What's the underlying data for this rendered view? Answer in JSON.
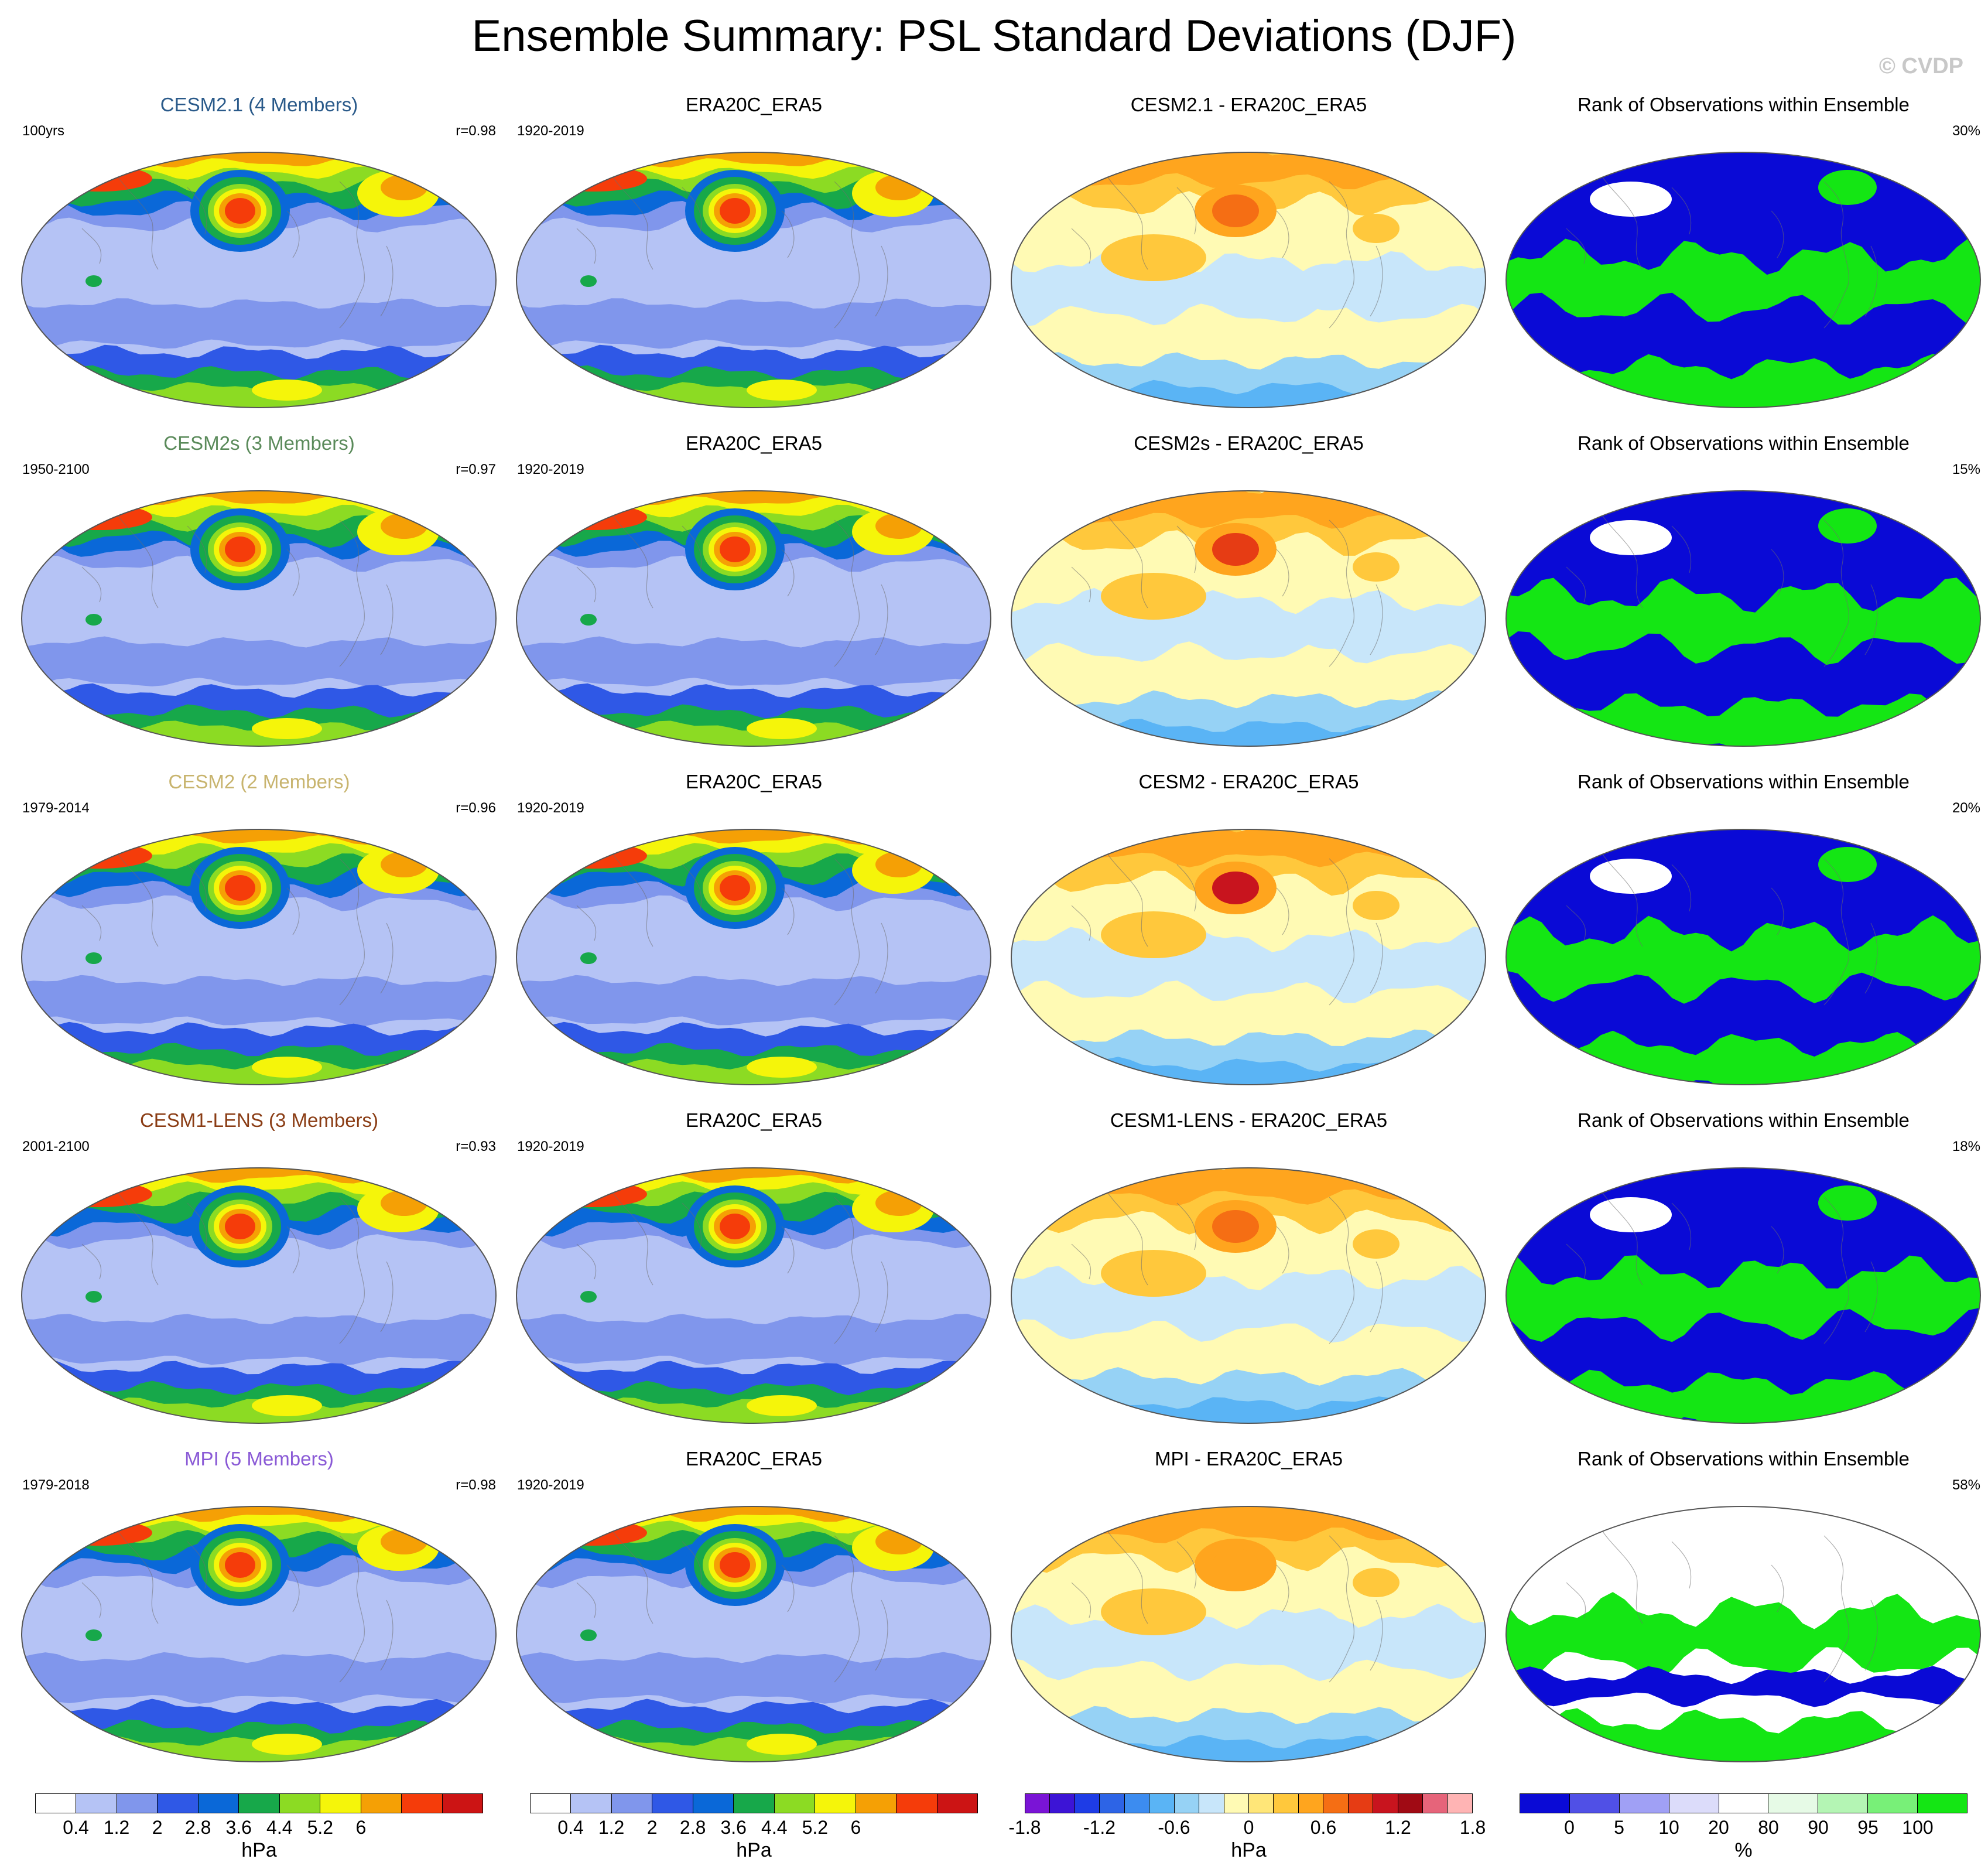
{
  "header": {
    "title": "Ensemble Summary: PSL Standard Deviations (DJF)",
    "credit": "© CVDP"
  },
  "colors": {
    "std_scale": [
      "#ffffff",
      "#b5c3f5",
      "#8096ec",
      "#2f58e6",
      "#0a68d8",
      "#17a84a",
      "#8cdb23",
      "#f5f50a",
      "#f5a005",
      "#f53c0a",
      "#cc1414"
    ],
    "diff_scale": [
      "#7a14d6",
      "#3c14d6",
      "#1e3ce6",
      "#2d64e6",
      "#3c8cf0",
      "#5ab4f5",
      "#96d2f5",
      "#c8e6fa",
      "#fffab4",
      "#ffe678",
      "#ffc83c",
      "#ffa51e",
      "#f56e14",
      "#e63c14",
      "#c8141e",
      "#a00a14",
      "#e6647a",
      "#ffb4b4"
    ],
    "rank_scale": [
      "#0a0ad6",
      "#5050e6",
      "#a0a0f5",
      "#dcdcfa",
      "#ffffff",
      "#e6fae6",
      "#b4f5b4",
      "#78f078",
      "#14e614"
    ],
    "title_cesm21": "#2a5a8a",
    "title_cesm2s": "#5a8a5a",
    "title_cesm2": "#c8b46e",
    "title_cesm1": "#8a3c14",
    "title_mpi": "#8a5ad6"
  },
  "rows": [
    {
      "model": {
        "title": "CESM2.1 (4 Members)",
        "period": "100yrs",
        "r": "r=0.98"
      },
      "obs": {
        "title": "ERA20C_ERA5",
        "period": "1920-2019"
      },
      "diff": {
        "title": "CESM2.1 - ERA20C_ERA5"
      },
      "rank": {
        "title": "Rank of Observations within Ensemble",
        "pct": "30%"
      }
    },
    {
      "model": {
        "title": "CESM2s (3 Members)",
        "period": "1950-2100",
        "r": "r=0.97"
      },
      "obs": {
        "title": "ERA20C_ERA5",
        "period": "1920-2019"
      },
      "diff": {
        "title": "CESM2s - ERA20C_ERA5"
      },
      "rank": {
        "title": "Rank of Observations within Ensemble",
        "pct": "15%"
      }
    },
    {
      "model": {
        "title": "CESM2 (2 Members)",
        "period": "1979-2014",
        "r": "r=0.96"
      },
      "obs": {
        "title": "ERA20C_ERA5",
        "period": "1920-2019"
      },
      "diff": {
        "title": "CESM2 - ERA20C_ERA5"
      },
      "rank": {
        "title": "Rank of Observations within Ensemble",
        "pct": "20%"
      }
    },
    {
      "model": {
        "title": "CESM1-LENS (3 Members)",
        "period": "2001-2100",
        "r": "r=0.93"
      },
      "obs": {
        "title": "ERA20C_ERA5",
        "period": "1920-2019"
      },
      "diff": {
        "title": "CESM1-LENS - ERA20C_ERA5"
      },
      "rank": {
        "title": "Rank of Observations within Ensemble",
        "pct": "18%"
      }
    },
    {
      "model": {
        "title": "MPI (5 Members)",
        "period": "1979-2018",
        "r": "r=0.98"
      },
      "obs": {
        "title": "ERA20C_ERA5",
        "period": "1920-2019"
      },
      "diff": {
        "title": "MPI - ERA20C_ERA5"
      },
      "rank": {
        "title": "Rank of Observations within Ensemble",
        "pct": "58%"
      }
    }
  ],
  "colorbars": {
    "std": {
      "ticks": [
        "0.4",
        "1.2",
        "2",
        "2.8",
        "3.6",
        "4.4",
        "5.2",
        "6"
      ],
      "unit": "hPa"
    },
    "diff": {
      "ticks": [
        "-1.8",
        "-1.2",
        "-0.6",
        "0",
        "0.6",
        "1.2",
        "1.8"
      ],
      "unit": "hPa"
    },
    "rank": {
      "ticks": [
        "0",
        "5",
        "10",
        "20",
        "80",
        "90",
        "95",
        "100"
      ],
      "unit": "%"
    }
  },
  "chart_data": {
    "type": "heatmap",
    "title": "Ensemble Summary: PSL Standard Deviations (DJF)",
    "projection": "Robinson (Pacific-centered)",
    "variable": "PSL standard deviation",
    "season": "DJF",
    "panels": [
      {
        "row": 1,
        "column": "model",
        "title": "CESM2.1 (4 Members)",
        "period": "100yrs",
        "pattern_correlation": 0.98
      },
      {
        "row": 1,
        "column": "observations",
        "title": "ERA20C_ERA5",
        "period": "1920-2019"
      },
      {
        "row": 1,
        "column": "difference",
        "title": "CESM2.1 - ERA20C_ERA5"
      },
      {
        "row": 1,
        "column": "rank",
        "title": "Rank of Observations within Ensemble",
        "percent": 30
      },
      {
        "row": 2,
        "column": "model",
        "title": "CESM2s (3 Members)",
        "period": "1950-2100",
        "pattern_correlation": 0.97
      },
      {
        "row": 2,
        "column": "observations",
        "title": "ERA20C_ERA5",
        "period": "1920-2019"
      },
      {
        "row": 2,
        "column": "difference",
        "title": "CESM2s - ERA20C_ERA5"
      },
      {
        "row": 2,
        "column": "rank",
        "title": "Rank of Observations within Ensemble",
        "percent": 15
      },
      {
        "row": 3,
        "column": "model",
        "title": "CESM2 (2 Members)",
        "period": "1979-2014",
        "pattern_correlation": 0.96
      },
      {
        "row": 3,
        "column": "observations",
        "title": "ERA20C_ERA5",
        "period": "1920-2019"
      },
      {
        "row": 3,
        "column": "difference",
        "title": "CESM2 - ERA20C_ERA5"
      },
      {
        "row": 3,
        "column": "rank",
        "title": "Rank of Observations within Ensemble",
        "percent": 20
      },
      {
        "row": 4,
        "column": "model",
        "title": "CESM1-LENS (3 Members)",
        "period": "2001-2100",
        "pattern_correlation": 0.93
      },
      {
        "row": 4,
        "column": "observations",
        "title": "ERA20C_ERA5",
        "period": "1920-2019"
      },
      {
        "row": 4,
        "column": "difference",
        "title": "CESM1-LENS - ERA20C_ERA5"
      },
      {
        "row": 4,
        "column": "rank",
        "title": "Rank of Observations within Ensemble",
        "percent": 18
      },
      {
        "row": 5,
        "column": "model",
        "title": "MPI (5 Members)",
        "period": "1979-2018",
        "pattern_correlation": 0.98
      },
      {
        "row": 5,
        "column": "observations",
        "title": "ERA20C_ERA5",
        "period": "1920-2019"
      },
      {
        "row": 5,
        "column": "difference",
        "title": "MPI - ERA20C_ERA5"
      },
      {
        "row": 5,
        "column": "rank",
        "title": "Rank of Observations within Ensemble",
        "percent": 58
      }
    ],
    "colorbar_std_levels": [
      0.4,
      0.8,
      1.2,
      1.6,
      2.0,
      2.4,
      2.8,
      3.2,
      3.6,
      4.0,
      4.4,
      4.8,
      5.2,
      5.6,
      6.0
    ],
    "colorbar_diff_levels": [
      -1.8,
      -1.2,
      -0.6,
      0,
      0.6,
      1.2,
      1.8
    ],
    "colorbar_rank_levels": [
      0,
      5,
      10,
      20,
      80,
      90,
      95,
      100
    ],
    "units": {
      "std": "hPa",
      "diff": "hPa",
      "rank": "%"
    }
  }
}
